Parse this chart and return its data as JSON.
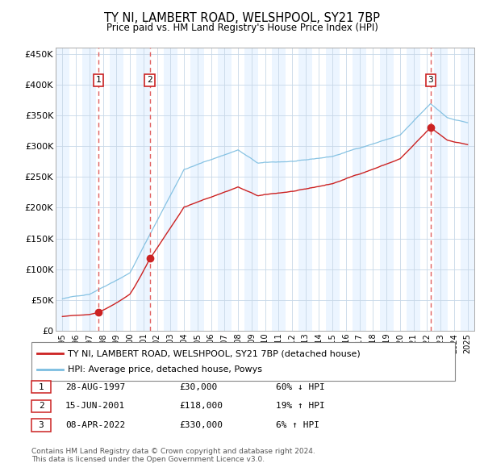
{
  "title": "TY NI, LAMBERT ROAD, WELSHPOOL, SY21 7BP",
  "subtitle": "Price paid vs. HM Land Registry's House Price Index (HPI)",
  "ylim": [
    0,
    460000
  ],
  "yticks": [
    0,
    50000,
    100000,
    150000,
    200000,
    250000,
    300000,
    350000,
    400000,
    450000
  ],
  "ytick_labels": [
    "£0",
    "£50K",
    "£100K",
    "£150K",
    "£200K",
    "£250K",
    "£300K",
    "£350K",
    "£400K",
    "£450K"
  ],
  "xlim_start": 1994.5,
  "xlim_end": 2025.5,
  "xticks": [
    1995,
    1996,
    1997,
    1998,
    1999,
    2000,
    2001,
    2002,
    2003,
    2004,
    2005,
    2006,
    2007,
    2008,
    2009,
    2010,
    2011,
    2012,
    2013,
    2014,
    2015,
    2016,
    2017,
    2018,
    2019,
    2020,
    2021,
    2022,
    2023,
    2024,
    2025
  ],
  "sale_dates": [
    1997.66,
    2001.46,
    2022.27
  ],
  "sale_prices": [
    30000,
    118000,
    330000
  ],
  "sale_labels": [
    "1",
    "2",
    "3"
  ],
  "legend_line1": "TY NI, LAMBERT ROAD, WELSHPOOL, SY21 7BP (detached house)",
  "legend_line2": "HPI: Average price, detached house, Powys",
  "table_rows": [
    [
      "1",
      "28-AUG-1997",
      "£30,000",
      "60% ↓ HPI"
    ],
    [
      "2",
      "15-JUN-2001",
      "£118,000",
      "19% ↑ HPI"
    ],
    [
      "3",
      "08-APR-2022",
      "£330,000",
      "6% ↑ HPI"
    ]
  ],
  "footnote": "Contains HM Land Registry data © Crown copyright and database right 2024.\nThis data is licensed under the Open Government Licence v3.0.",
  "hpi_color": "#7bbde0",
  "price_color": "#cc2222",
  "grid_color": "#c8d8e8",
  "band_color": "#ddeeff",
  "dashed_color": "#e06060"
}
